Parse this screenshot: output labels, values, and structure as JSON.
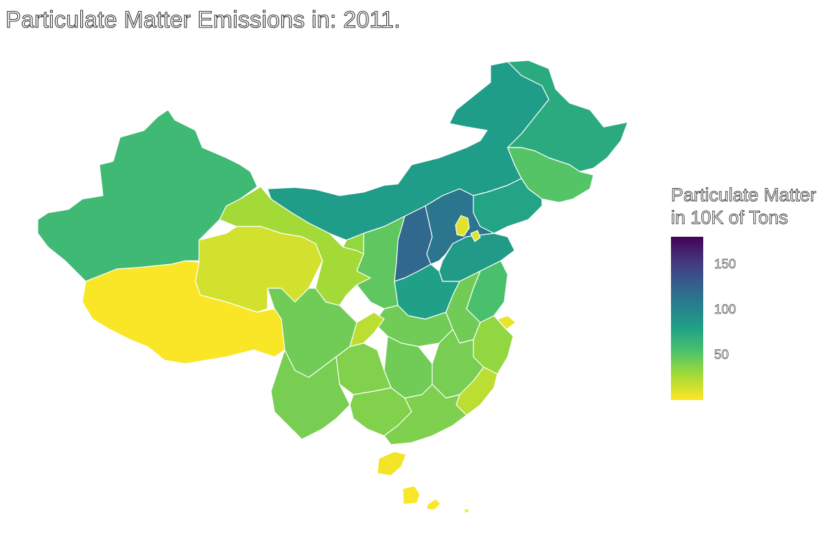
{
  "title": "Particulate Matter Emissions in: 2011.",
  "legend": {
    "title_line1": "Particulate Matter",
    "title_line2": "in 10K of Tons",
    "ticks": [
      "150",
      "100",
      "50"
    ],
    "colors": [
      "#440154",
      "#46337e",
      "#365c8d",
      "#277f8e",
      "#1fa187",
      "#4ac16d",
      "#a0da39",
      "#fde725"
    ]
  },
  "chart_data": {
    "type": "choropleth",
    "region": "China provinces",
    "year": "2011",
    "scale_range": [
      0,
      180
    ],
    "regions": [
      {
        "name": "Shanxi",
        "value": 120
      },
      {
        "name": "Hebei",
        "value": 110
      },
      {
        "name": "Inner Mongolia",
        "value": 80
      },
      {
        "name": "Heilongjiang",
        "value": 70
      },
      {
        "name": "Liaoning",
        "value": 75
      },
      {
        "name": "Shandong",
        "value": 82
      },
      {
        "name": "Henan",
        "value": 78
      },
      {
        "name": "Xinjiang",
        "value": 58
      },
      {
        "name": "Jilin",
        "value": 48
      },
      {
        "name": "Jiangsu",
        "value": 52
      },
      {
        "name": "Shaanxi",
        "value": 45
      },
      {
        "name": "Hubei",
        "value": 40
      },
      {
        "name": "Sichuan",
        "value": 40
      },
      {
        "name": "Yunnan",
        "value": 38
      },
      {
        "name": "Guangxi",
        "value": 35
      },
      {
        "name": "Guangdong",
        "value": 36
      },
      {
        "name": "Anhui",
        "value": 40
      },
      {
        "name": "Hunan",
        "value": 40
      },
      {
        "name": "Jiangxi",
        "value": 38
      },
      {
        "name": "Guizhou",
        "value": 35
      },
      {
        "name": "Zhejiang",
        "value": 30
      },
      {
        "name": "Ningxia",
        "value": 30
      },
      {
        "name": "Gansu",
        "value": 25
      },
      {
        "name": "Fujian",
        "value": 18
      },
      {
        "name": "Chongqing",
        "value": 18
      },
      {
        "name": "Qinghai",
        "value": 12
      },
      {
        "name": "Beijing",
        "value": 8
      },
      {
        "name": "Tianjin",
        "value": 8
      },
      {
        "name": "Shanghai",
        "value": 6
      },
      {
        "name": "Hainan",
        "value": 3
      },
      {
        "name": "Tibet",
        "value": 1
      },
      {
        "name": "Taiwan",
        "value": 1
      }
    ]
  }
}
